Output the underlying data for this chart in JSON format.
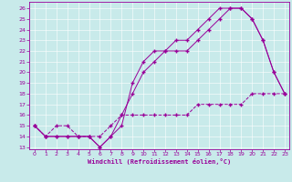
{
  "background_color": "#c8eaea",
  "line_color": "#990099",
  "xlabel": "Windchill (Refroidissement éolien,°C)",
  "xlim": [
    -0.5,
    23.4
  ],
  "ylim": [
    12.8,
    26.6
  ],
  "yticks": [
    13,
    14,
    15,
    16,
    17,
    18,
    19,
    20,
    21,
    22,
    23,
    24,
    25,
    26
  ],
  "xticks": [
    0,
    1,
    2,
    3,
    4,
    5,
    6,
    7,
    8,
    9,
    10,
    11,
    12,
    13,
    14,
    15,
    16,
    17,
    18,
    19,
    20,
    21,
    22,
    23
  ],
  "line1_x": [
    0,
    1,
    2,
    3,
    4,
    5,
    6,
    7,
    8,
    9,
    10,
    11,
    12,
    13,
    14,
    15,
    16,
    17,
    18,
    19,
    20,
    21,
    22,
    23
  ],
  "line1_y": [
    15,
    14,
    14,
    14,
    14,
    14,
    13,
    14,
    16,
    18,
    20,
    21,
    22,
    22,
    22,
    23,
    24,
    25,
    26,
    26,
    25,
    23,
    20,
    18
  ],
  "line2_x": [
    0,
    1,
    2,
    3,
    4,
    5,
    6,
    7,
    8,
    9,
    10,
    11,
    12,
    13,
    14,
    15,
    16,
    17,
    18,
    19,
    20,
    21,
    22,
    23
  ],
  "line2_y": [
    15,
    14,
    14,
    14,
    14,
    14,
    13,
    14,
    15,
    19,
    21,
    22,
    22,
    23,
    23,
    24,
    25,
    26,
    26,
    26,
    25,
    23,
    20,
    18
  ],
  "line3_x": [
    0,
    1,
    2,
    3,
    4,
    5,
    6,
    7,
    8,
    9,
    10,
    11,
    12,
    13,
    14,
    15,
    16,
    17,
    18,
    19,
    20,
    21,
    22,
    23
  ],
  "line3_y": [
    15,
    14,
    15,
    15,
    14,
    14,
    14,
    15,
    16,
    16,
    16,
    16,
    16,
    16,
    16,
    17,
    17,
    17,
    17,
    17,
    18,
    18,
    18,
    18
  ],
  "tick_fontsize": 4.5,
  "xlabel_fontsize": 5.0,
  "linewidth": 0.7,
  "markersize": 2.5
}
